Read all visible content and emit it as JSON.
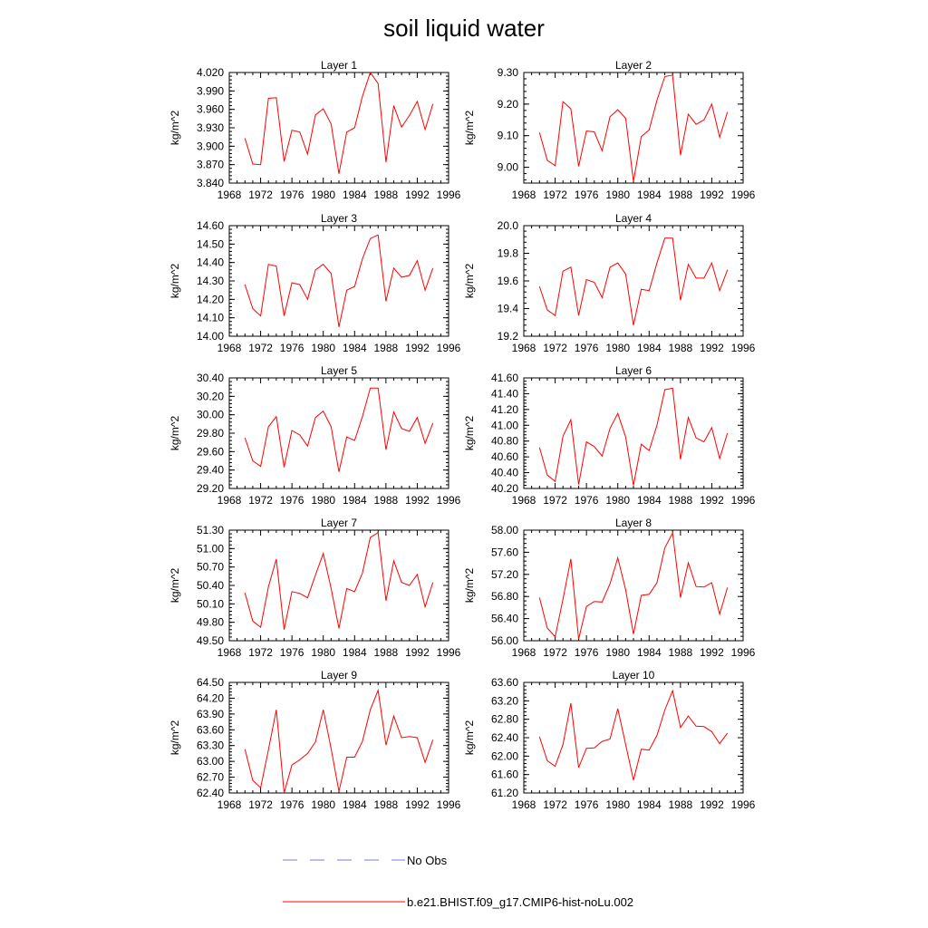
{
  "title": "soil liquid water",
  "legend": {
    "obs_label": "No Obs",
    "model_label": "b.e21.BHIST.f09_g17.CMIP6-hist-noLu.002",
    "obs_color": "#7b7bd6",
    "model_color": "#ff0000"
  },
  "chart_data": [
    {
      "type": "line",
      "title": "Layer 1",
      "ylabel": "kg/m^2",
      "xlim": [
        1968,
        1996
      ],
      "xticks": [
        "1968",
        "1972",
        "1976",
        "1980",
        "1984",
        "1988",
        "1992",
        "1996"
      ],
      "ylim": [
        3.84,
        4.02
      ],
      "yticks": [
        "3.840",
        "3.870",
        "3.900",
        "3.930",
        "3.960",
        "3.990",
        "4.020"
      ],
      "x": [
        1970,
        1971,
        1972,
        1973,
        1974,
        1975,
        1976,
        1977,
        1978,
        1979,
        1980,
        1981,
        1982,
        1983,
        1984,
        1985,
        1986,
        1987,
        1988,
        1989,
        1990,
        1991,
        1992,
        1993,
        1994
      ],
      "values": [
        3.913,
        3.871,
        3.87,
        3.978,
        3.979,
        3.875,
        3.926,
        3.923,
        3.887,
        3.951,
        3.961,
        3.936,
        3.855,
        3.923,
        3.93,
        3.981,
        4.02,
        4.002,
        3.874,
        3.966,
        3.931,
        3.95,
        3.973,
        3.927,
        3.969
      ]
    },
    {
      "type": "line",
      "title": "Layer 2",
      "ylabel": "kg/m^2",
      "xlim": [
        1968,
        1996
      ],
      "xticks": [
        "1968",
        "1972",
        "1976",
        "1980",
        "1984",
        "1988",
        "1992",
        "1996"
      ],
      "ylim": [
        8.95,
        9.3
      ],
      "yticks": [
        "9.00",
        "9.10",
        "9.20",
        "9.30"
      ],
      "x": [
        1970,
        1971,
        1972,
        1973,
        1974,
        1975,
        1976,
        1977,
        1978,
        1979,
        1980,
        1981,
        1982,
        1983,
        1984,
        1985,
        1986,
        1987,
        1988,
        1989,
        1990,
        1991,
        1992,
        1993,
        1994
      ],
      "values": [
        9.11,
        9.022,
        9.005,
        9.208,
        9.185,
        9.003,
        9.115,
        9.112,
        9.052,
        9.16,
        9.182,
        9.155,
        8.955,
        9.097,
        9.118,
        9.212,
        9.287,
        9.292,
        9.038,
        9.168,
        9.136,
        9.15,
        9.2,
        9.095,
        9.175
      ]
    },
    {
      "type": "line",
      "title": "Layer 3",
      "ylabel": "kg/m^2",
      "xlim": [
        1968,
        1996
      ],
      "xticks": [
        "1968",
        "1972",
        "1976",
        "1980",
        "1984",
        "1988",
        "1992",
        "1996"
      ],
      "ylim": [
        14.0,
        14.6
      ],
      "yticks": [
        "14.00",
        "14.10",
        "14.20",
        "14.30",
        "14.40",
        "14.50",
        "14.60"
      ],
      "x": [
        1970,
        1971,
        1972,
        1973,
        1974,
        1975,
        1976,
        1977,
        1978,
        1979,
        1980,
        1981,
        1982,
        1983,
        1984,
        1985,
        1986,
        1987,
        1988,
        1989,
        1990,
        1991,
        1992,
        1993,
        1994
      ],
      "values": [
        14.28,
        14.15,
        14.11,
        14.39,
        14.38,
        14.11,
        14.29,
        14.28,
        14.2,
        14.36,
        14.39,
        14.34,
        14.05,
        14.25,
        14.27,
        14.42,
        14.53,
        14.55,
        14.19,
        14.37,
        14.32,
        14.33,
        14.41,
        14.25,
        14.37
      ]
    },
    {
      "type": "line",
      "title": "Layer 4",
      "ylabel": "kg/m^2",
      "xlim": [
        1968,
        1996
      ],
      "xticks": [
        "1968",
        "1972",
        "1976",
        "1980",
        "1984",
        "1988",
        "1992",
        "1996"
      ],
      "ylim": [
        19.2,
        20.0
      ],
      "yticks": [
        "19.2",
        "19.4",
        "19.6",
        "19.8",
        "20.0"
      ],
      "x": [
        1970,
        1971,
        1972,
        1973,
        1974,
        1975,
        1976,
        1977,
        1978,
        1979,
        1980,
        1981,
        1982,
        1983,
        1984,
        1985,
        1986,
        1987,
        1988,
        1989,
        1990,
        1991,
        1992,
        1993,
        1994
      ],
      "values": [
        19.56,
        19.39,
        19.35,
        19.67,
        19.7,
        19.35,
        19.61,
        19.59,
        19.48,
        19.7,
        19.73,
        19.65,
        19.28,
        19.54,
        19.53,
        19.73,
        19.91,
        19.91,
        19.46,
        19.72,
        19.62,
        19.62,
        19.73,
        19.53,
        19.68
      ]
    },
    {
      "type": "line",
      "title": "Layer 5",
      "ylabel": "kg/m^2",
      "xlim": [
        1968,
        1996
      ],
      "xticks": [
        "1968",
        "1972",
        "1976",
        "1980",
        "1984",
        "1988",
        "1992",
        "1996"
      ],
      "ylim": [
        29.2,
        30.4
      ],
      "yticks": [
        "29.20",
        "29.40",
        "29.60",
        "29.80",
        "30.00",
        "30.20",
        "30.40"
      ],
      "x": [
        1970,
        1971,
        1972,
        1973,
        1974,
        1975,
        1976,
        1977,
        1978,
        1979,
        1980,
        1981,
        1982,
        1983,
        1984,
        1985,
        1986,
        1987,
        1988,
        1989,
        1990,
        1991,
        1992,
        1993,
        1994
      ],
      "values": [
        29.75,
        29.5,
        29.44,
        29.87,
        29.98,
        29.43,
        29.83,
        29.78,
        29.66,
        29.97,
        30.04,
        29.87,
        29.38,
        29.76,
        29.72,
        29.98,
        30.29,
        30.29,
        29.62,
        30.03,
        29.85,
        29.82,
        29.97,
        29.69,
        29.91
      ]
    },
    {
      "type": "line",
      "title": "Layer 6",
      "ylabel": "kg/m^2",
      "xlim": [
        1968,
        1996
      ],
      "xticks": [
        "1968",
        "1972",
        "1976",
        "1980",
        "1984",
        "1988",
        "1992",
        "1996"
      ],
      "ylim": [
        40.2,
        41.6
      ],
      "yticks": [
        "40.20",
        "40.40",
        "40.60",
        "40.80",
        "41.00",
        "41.20",
        "41.40",
        "41.60"
      ],
      "x": [
        1970,
        1971,
        1972,
        1973,
        1974,
        1975,
        1976,
        1977,
        1978,
        1979,
        1980,
        1981,
        1982,
        1983,
        1984,
        1985,
        1986,
        1987,
        1988,
        1989,
        1990,
        1991,
        1992,
        1993,
        1994
      ],
      "values": [
        40.72,
        40.37,
        40.29,
        40.86,
        41.07,
        40.25,
        40.79,
        40.73,
        40.61,
        40.96,
        41.15,
        40.85,
        40.24,
        40.76,
        40.68,
        41.0,
        41.45,
        41.47,
        40.57,
        41.1,
        40.84,
        40.79,
        40.97,
        40.58,
        40.9
      ]
    },
    {
      "type": "line",
      "title": "Layer 7",
      "ylabel": "kg/m^2",
      "xlim": [
        1968,
        1996
      ],
      "xticks": [
        "1968",
        "1972",
        "1976",
        "1980",
        "1984",
        "1988",
        "1992",
        "1996"
      ],
      "ylim": [
        49.5,
        51.3
      ],
      "yticks": [
        "49.50",
        "49.80",
        "50.10",
        "50.40",
        "50.70",
        "51.00",
        "51.30"
      ],
      "x": [
        1970,
        1971,
        1972,
        1973,
        1974,
        1975,
        1976,
        1977,
        1978,
        1979,
        1980,
        1981,
        1982,
        1983,
        1984,
        1985,
        1986,
        1987,
        1988,
        1989,
        1990,
        1991,
        1992,
        1993,
        1994
      ],
      "values": [
        50.28,
        49.82,
        49.72,
        50.38,
        50.83,
        49.68,
        50.3,
        50.27,
        50.2,
        50.57,
        50.92,
        50.35,
        49.7,
        50.35,
        50.3,
        50.6,
        51.18,
        51.26,
        50.15,
        50.8,
        50.45,
        50.4,
        50.58,
        50.05,
        50.45
      ]
    },
    {
      "type": "line",
      "title": "Layer 8",
      "ylabel": "kg/m^2",
      "xlim": [
        1968,
        1996
      ],
      "xticks": [
        "1968",
        "1972",
        "1976",
        "1980",
        "1984",
        "1988",
        "1992",
        "1996"
      ],
      "ylim": [
        56.0,
        58.0
      ],
      "yticks": [
        "56.00",
        "56.40",
        "56.80",
        "57.20",
        "57.60",
        "58.00"
      ],
      "x": [
        1970,
        1971,
        1972,
        1973,
        1974,
        1975,
        1976,
        1977,
        1978,
        1979,
        1980,
        1981,
        1982,
        1983,
        1984,
        1985,
        1986,
        1987,
        1988,
        1989,
        1990,
        1991,
        1992,
        1993,
        1994
      ],
      "values": [
        56.78,
        56.23,
        56.07,
        56.75,
        57.48,
        56.03,
        56.62,
        56.71,
        56.7,
        57.03,
        57.5,
        56.92,
        56.12,
        56.82,
        56.84,
        57.05,
        57.68,
        57.95,
        56.78,
        57.41,
        56.98,
        56.97,
        57.05,
        56.48,
        56.96
      ]
    },
    {
      "type": "line",
      "title": "Layer 9",
      "ylabel": "kg/m^2",
      "xlim": [
        1968,
        1996
      ],
      "xticks": [
        "1968",
        "1972",
        "1976",
        "1980",
        "1984",
        "1988",
        "1992",
        "1996"
      ],
      "ylim": [
        62.4,
        64.5
      ],
      "yticks": [
        "62.40",
        "62.70",
        "63.00",
        "63.30",
        "63.60",
        "63.90",
        "64.20",
        "64.50"
      ],
      "x": [
        1970,
        1971,
        1972,
        1973,
        1974,
        1975,
        1976,
        1977,
        1978,
        1979,
        1980,
        1981,
        1982,
        1983,
        1984,
        1985,
        1986,
        1987,
        1988,
        1989,
        1990,
        1991,
        1992,
        1993,
        1994
      ],
      "values": [
        63.23,
        62.64,
        62.5,
        63.22,
        63.98,
        62.4,
        62.93,
        63.03,
        63.15,
        63.37,
        63.98,
        63.24,
        62.43,
        63.08,
        63.08,
        63.38,
        63.98,
        64.35,
        63.31,
        63.86,
        63.45,
        63.47,
        63.45,
        62.98,
        63.41
      ]
    },
    {
      "type": "line",
      "title": "Layer 10",
      "ylabel": "kg/m^2",
      "xlim": [
        1968,
        1996
      ],
      "xticks": [
        "1968",
        "1972",
        "1976",
        "1980",
        "1984",
        "1988",
        "1992",
        "1996"
      ],
      "ylim": [
        61.2,
        63.6
      ],
      "yticks": [
        "61.20",
        "61.60",
        "62.00",
        "62.40",
        "62.80",
        "63.20",
        "63.60"
      ],
      "x": [
        1970,
        1971,
        1972,
        1973,
        1974,
        1975,
        1976,
        1977,
        1978,
        1979,
        1980,
        1981,
        1982,
        1983,
        1984,
        1985,
        1986,
        1987,
        1988,
        1989,
        1990,
        1991,
        1992,
        1993,
        1994
      ],
      "values": [
        62.42,
        61.9,
        61.78,
        62.25,
        63.15,
        61.75,
        62.17,
        62.18,
        62.32,
        62.37,
        63.03,
        62.25,
        61.48,
        62.15,
        62.13,
        62.45,
        63.0,
        63.42,
        62.62,
        62.87,
        62.65,
        62.64,
        62.53,
        62.27,
        62.5
      ]
    }
  ]
}
